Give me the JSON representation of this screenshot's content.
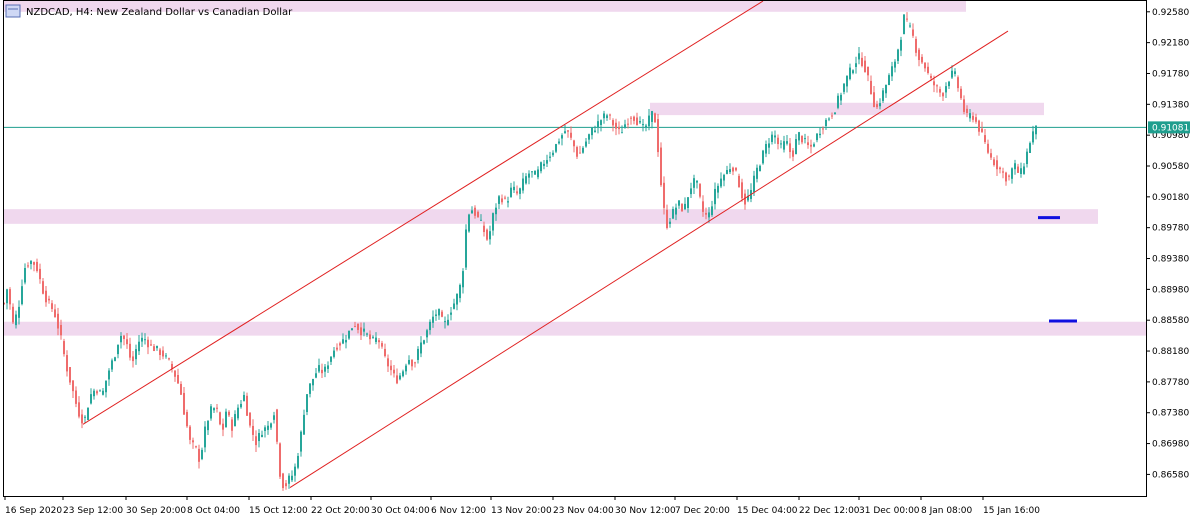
{
  "header": {
    "title": "NZDCAD, H4:  New Zealand Dollar vs Canadian Dollar"
  },
  "colors": {
    "background": "#ffffff",
    "frame": "#000000",
    "bull_candle": "#26a69a",
    "bear_candle": "#ef6c6c",
    "zone_fill": "#f0d8ee",
    "trend_line": "#e02020",
    "current_price_line": "#1f9e8e",
    "marker": "#1010e0"
  },
  "chart_data": {
    "type": "candlestick",
    "title": "NZDCAD, H4:  New Zealand Dollar vs Canadian Dollar",
    "symbol": "NZDCAD",
    "timeframe": "H4",
    "ylim": [
      0.863,
      0.9272
    ],
    "y_ticks": [
      "0.92580",
      "0.92180",
      "0.91780",
      "0.91380",
      "0.90980",
      "0.90580",
      "0.90180",
      "0.89780",
      "0.89380",
      "0.88980",
      "0.88580",
      "0.88180",
      "0.87780",
      "0.87380",
      "0.86980",
      "0.86580"
    ],
    "x_ticks": [
      "16 Sep 2020",
      "23 Sep 12:00",
      "30 Sep 20:00",
      "8 Oct 04:00",
      "15 Oct 12:00",
      "22 Oct 20:00",
      "30 Oct 04:00",
      "6 Nov 12:00",
      "13 Nov 20:00",
      "23 Nov 04:00",
      "30 Nov 12:00",
      "7 Dec 20:00",
      "15 Dec 04:00",
      "22 Dec 12:00",
      "31 Dec 00:00",
      "8 Jan 08:00",
      "15 Jan 16:00"
    ],
    "current_price": 0.91081,
    "current_price_label": "0.91081",
    "price_path": [
      [
        0,
        0.888
      ],
      [
        4,
        0.8905
      ],
      [
        8,
        0.885
      ],
      [
        14,
        0.887
      ],
      [
        20,
        0.8925
      ],
      [
        26,
        0.8935
      ],
      [
        32,
        0.893
      ],
      [
        38,
        0.89
      ],
      [
        44,
        0.888
      ],
      [
        50,
        0.887
      ],
      [
        56,
        0.884
      ],
      [
        62,
        0.88
      ],
      [
        68,
        0.877
      ],
      [
        74,
        0.874
      ],
      [
        80,
        0.8725
      ],
      [
        86,
        0.876
      ],
      [
        92,
        0.877
      ],
      [
        98,
        0.876
      ],
      [
        104,
        0.879
      ],
      [
        110,
        0.881
      ],
      [
        116,
        0.884
      ],
      [
        122,
        0.883
      ],
      [
        128,
        0.88
      ],
      [
        134,
        0.883
      ],
      [
        140,
        0.8835
      ],
      [
        146,
        0.8825
      ],
      [
        152,
        0.882
      ],
      [
        158,
        0.8815
      ],
      [
        164,
        0.8805
      ],
      [
        170,
        0.879
      ],
      [
        176,
        0.877
      ],
      [
        180,
        0.874
      ],
      [
        186,
        0.87
      ],
      [
        192,
        0.869
      ],
      [
        196,
        0.8675
      ],
      [
        200,
        0.871
      ],
      [
        206,
        0.874
      ],
      [
        212,
        0.8745
      ],
      [
        218,
        0.871
      ],
      [
        222,
        0.874
      ],
      [
        228,
        0.872
      ],
      [
        234,
        0.8745
      ],
      [
        240,
        0.876
      ],
      [
        246,
        0.872
      ],
      [
        252,
        0.87
      ],
      [
        258,
        0.8715
      ],
      [
        264,
        0.872
      ],
      [
        270,
        0.874
      ],
      [
        276,
        0.866
      ],
      [
        280,
        0.864
      ],
      [
        284,
        0.865
      ],
      [
        290,
        0.866
      ],
      [
        296,
        0.87
      ],
      [
        302,
        0.876
      ],
      [
        308,
        0.878
      ],
      [
        314,
        0.8795
      ],
      [
        320,
        0.879
      ],
      [
        326,
        0.881
      ],
      [
        332,
        0.8825
      ],
      [
        338,
        0.883
      ],
      [
        344,
        0.884
      ],
      [
        350,
        0.8855
      ],
      [
        356,
        0.8845
      ],
      [
        362,
        0.884
      ],
      [
        368,
        0.883
      ],
      [
        374,
        0.8835
      ],
      [
        380,
        0.881
      ],
      [
        386,
        0.8795
      ],
      [
        392,
        0.878
      ],
      [
        398,
        0.879
      ],
      [
        404,
        0.881
      ],
      [
        410,
        0.88
      ],
      [
        416,
        0.8825
      ],
      [
        422,
        0.884
      ],
      [
        428,
        0.886
      ],
      [
        434,
        0.887
      ],
      [
        440,
        0.885
      ],
      [
        446,
        0.887
      ],
      [
        452,
        0.8885
      ],
      [
        458,
        0.891
      ],
      [
        462,
        0.8975
      ],
      [
        466,
        0.9005
      ],
      [
        472,
        0.8995
      ],
      [
        478,
        0.898
      ],
      [
        484,
        0.896
      ],
      [
        490,
        0.9
      ],
      [
        496,
        0.902
      ],
      [
        502,
        0.901
      ],
      [
        508,
        0.903
      ],
      [
        514,
        0.902
      ],
      [
        520,
        0.904
      ],
      [
        526,
        0.905
      ],
      [
        532,
        0.9045
      ],
      [
        538,
        0.906
      ],
      [
        544,
        0.907
      ],
      [
        550,
        0.908
      ],
      [
        556,
        0.9095
      ],
      [
        562,
        0.9105
      ],
      [
        568,
        0.909
      ],
      [
        574,
        0.907
      ],
      [
        580,
        0.9085
      ],
      [
        586,
        0.91
      ],
      [
        592,
        0.911
      ],
      [
        598,
        0.912
      ],
      [
        604,
        0.9125
      ],
      [
        610,
        0.911
      ],
      [
        616,
        0.91
      ],
      [
        622,
        0.9115
      ],
      [
        628,
        0.9125
      ],
      [
        634,
        0.9115
      ],
      [
        640,
        0.9105
      ],
      [
        646,
        0.912
      ],
      [
        650,
        0.913
      ],
      [
        654,
        0.908
      ],
      [
        658,
        0.902
      ],
      [
        662,
        0.898
      ],
      [
        668,
        0.8995
      ],
      [
        674,
        0.901
      ],
      [
        680,
        0.9
      ],
      [
        686,
        0.903
      ],
      [
        692,
        0.904
      ],
      [
        698,
        0.9
      ],
      [
        704,
        0.899
      ],
      [
        710,
        0.902
      ],
      [
        716,
        0.904
      ],
      [
        722,
        0.905
      ],
      [
        728,
        0.906
      ],
      [
        734,
        0.904
      ],
      [
        740,
        0.901
      ],
      [
        746,
        0.902
      ],
      [
        752,
        0.905
      ],
      [
        758,
        0.907
      ],
      [
        764,
        0.909
      ],
      [
        770,
        0.91
      ],
      [
        776,
        0.908
      ],
      [
        782,
        0.909
      ],
      [
        788,
        0.907
      ],
      [
        794,
        0.91
      ],
      [
        800,
        0.909
      ],
      [
        806,
        0.908
      ],
      [
        812,
        0.9095
      ],
      [
        818,
        0.911
      ],
      [
        824,
        0.912
      ],
      [
        830,
        0.913
      ],
      [
        836,
        0.915
      ],
      [
        842,
        0.917
      ],
      [
        848,
        0.9185
      ],
      [
        854,
        0.92
      ],
      [
        860,
        0.919
      ],
      [
        866,
        0.916
      ],
      [
        872,
        0.913
      ],
      [
        878,
        0.915
      ],
      [
        884,
        0.917
      ],
      [
        890,
        0.919
      ],
      [
        896,
        0.922
      ],
      [
        900,
        0.925
      ],
      [
        904,
        0.924
      ],
      [
        908,
        0.923
      ],
      [
        914,
        0.92
      ],
      [
        920,
        0.919
      ],
      [
        926,
        0.917
      ],
      [
        932,
        0.916
      ],
      [
        938,
        0.915
      ],
      [
        944,
        0.917
      ],
      [
        950,
        0.918
      ],
      [
        956,
        0.915
      ],
      [
        962,
        0.912
      ],
      [
        968,
        0.9125
      ],
      [
        974,
        0.911
      ],
      [
        980,
        0.909
      ],
      [
        986,
        0.907
      ],
      [
        992,
        0.906
      ],
      [
        998,
        0.905
      ],
      [
        1004,
        0.904
      ],
      [
        1010,
        0.906
      ],
      [
        1016,
        0.9045
      ],
      [
        1022,
        0.907
      ],
      [
        1028,
        0.91
      ],
      [
        1034,
        0.9108
      ]
    ],
    "zones": [
      {
        "name": "resistance-zone-top",
        "from": 0.9258,
        "to": 0.9272
      },
      {
        "name": "resistance-zone-mid",
        "from": 0.9124,
        "to": 0.914
      },
      {
        "name": "support-zone-upper",
        "from": 0.8983,
        "to": 0.9002
      },
      {
        "name": "support-zone-lower",
        "from": 0.8838,
        "to": 0.8856
      }
    ],
    "markers": [
      {
        "name": "target-marker-upper",
        "price": 0.8991
      },
      {
        "name": "target-marker-lower",
        "price": 0.8857
      }
    ],
    "trend_lines": [
      {
        "name": "channel-upper-line",
        "p1": [
          80,
          0.8723
        ],
        "p2": [
          760,
          0.9272
        ]
      },
      {
        "name": "channel-lower-line",
        "p1": [
          287,
          0.8641
        ],
        "p2": [
          1005,
          0.9233
        ]
      }
    ]
  }
}
